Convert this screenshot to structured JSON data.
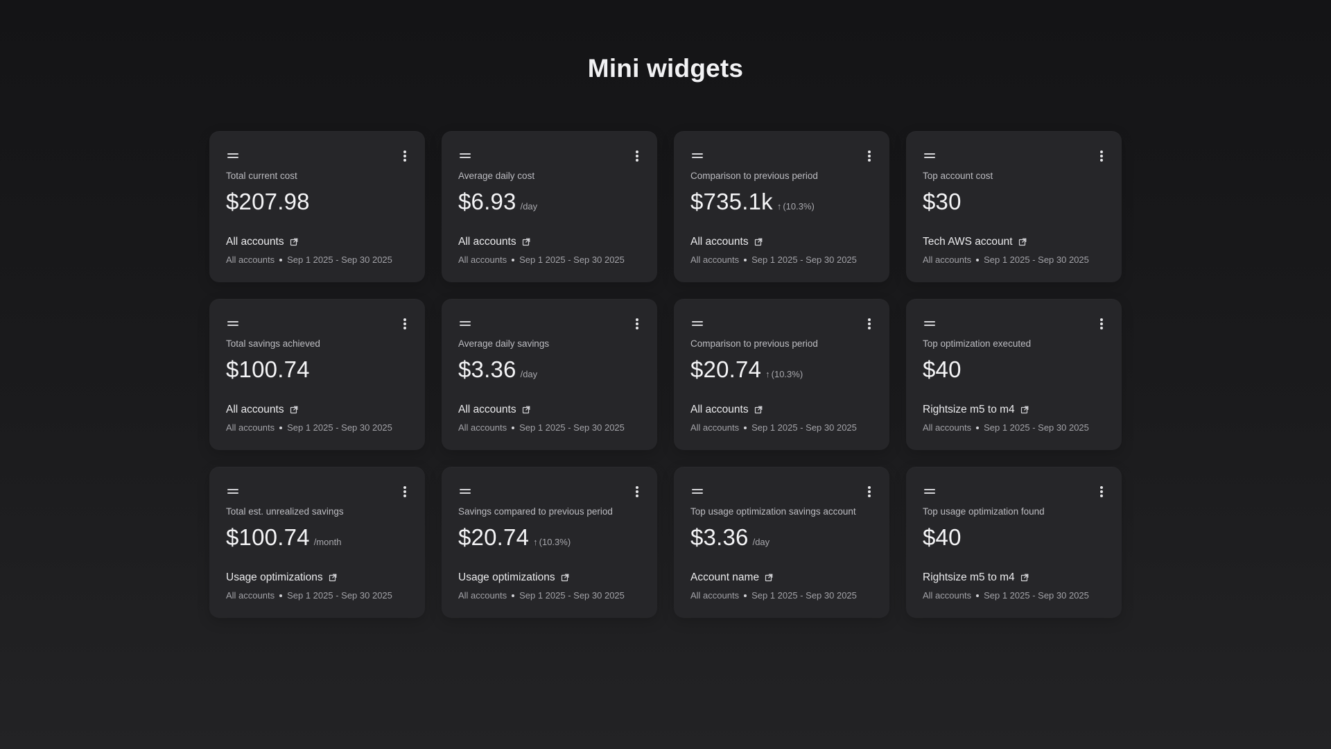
{
  "page": {
    "title": "Mini widgets"
  },
  "icons": {
    "drag": "drag-handle-icon",
    "menu": "more-vertical-icon",
    "external": "external-link-icon",
    "arrow_up": "arrow-up-icon"
  },
  "colors": {
    "background_top": "#141416",
    "background_bottom": "#232325",
    "card": "#262629",
    "text_primary": "#f4f4f6",
    "text_secondary": "#bdbdc2"
  },
  "widgets": [
    {
      "label": "Total current cost",
      "value": "$207.98",
      "unit": "",
      "delta": "",
      "link": "All accounts",
      "meta_scope": "All accounts",
      "meta_range": "Sep 1 2025 - Sep 30 2025"
    },
    {
      "label": "Average daily cost",
      "value": "$6.93",
      "unit": "/day",
      "delta": "",
      "link": "All accounts",
      "meta_scope": "All accounts",
      "meta_range": "Sep 1 2025 - Sep 30 2025"
    },
    {
      "label": "Comparison to previous period",
      "value": "$735.1k",
      "unit": "",
      "delta": "(10.3%)",
      "link": "All accounts",
      "meta_scope": "All accounts",
      "meta_range": "Sep 1 2025 - Sep 30 2025"
    },
    {
      "label": "Top account cost",
      "value": "$30",
      "unit": "",
      "delta": "",
      "link": "Tech AWS account",
      "meta_scope": "All accounts",
      "meta_range": "Sep 1 2025 - Sep 30 2025"
    },
    {
      "label": "Total savings achieved",
      "value": "$100.74",
      "unit": "",
      "delta": "",
      "link": "All accounts",
      "meta_scope": "All accounts",
      "meta_range": "Sep 1 2025 - Sep 30 2025"
    },
    {
      "label": "Average daily savings",
      "value": "$3.36",
      "unit": "/day",
      "delta": "",
      "link": "All accounts",
      "meta_scope": "All accounts",
      "meta_range": "Sep 1 2025 - Sep 30 2025"
    },
    {
      "label": "Comparison to previous period",
      "value": "$20.74",
      "unit": "",
      "delta": "(10.3%)",
      "link": "All accounts",
      "meta_scope": "All accounts",
      "meta_range": "Sep 1 2025 - Sep 30 2025"
    },
    {
      "label": "Top optimization executed",
      "value": "$40",
      "unit": "",
      "delta": "",
      "link": "Rightsize m5 to m4",
      "meta_scope": "All accounts",
      "meta_range": "Sep 1 2025 - Sep 30 2025"
    },
    {
      "label": "Total est. unrealized savings",
      "value": "$100.74",
      "unit": "/month",
      "delta": "",
      "link": "Usage optimizations",
      "meta_scope": "All accounts",
      "meta_range": "Sep 1 2025 - Sep 30 2025"
    },
    {
      "label": "Savings compared to previous period",
      "value": "$20.74",
      "unit": "",
      "delta": "(10.3%)",
      "link": "Usage optimizations",
      "meta_scope": "All accounts",
      "meta_range": "Sep 1 2025 - Sep 30 2025"
    },
    {
      "label": "Top usage optimization savings account",
      "value": "$3.36",
      "unit": "/day",
      "delta": "",
      "link": "Account name",
      "meta_scope": "All accounts",
      "meta_range": "Sep 1 2025 - Sep 30 2025"
    },
    {
      "label": "Top usage optimization found",
      "value": "$40",
      "unit": "",
      "delta": "",
      "link": "Rightsize m5 to m4",
      "meta_scope": "All accounts",
      "meta_range": "Sep 1 2025 - Sep 30 2025"
    }
  ]
}
